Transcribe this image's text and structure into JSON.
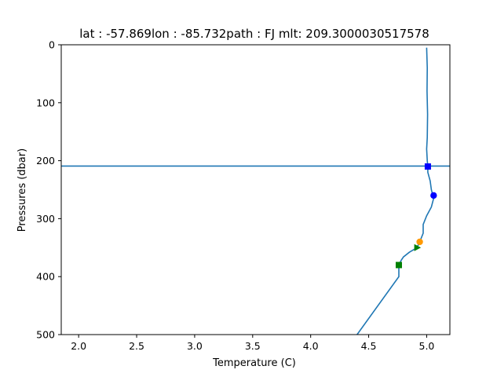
{
  "chart_data": {
    "type": "line",
    "title": "lat : -57.869lon : -85.732path :  FJ  mlt: 209.3000030517578",
    "xlabel": "Temperature (C)",
    "ylabel": "Pressures (dbar)",
    "xlim": [
      1.85,
      5.2
    ],
    "ylim": [
      500,
      0
    ],
    "y_inverted": true,
    "grid": false,
    "x_ticks": [
      2.0,
      2.5,
      3.0,
      3.5,
      4.0,
      4.5,
      5.0
    ],
    "x_tick_labels": [
      "2.0",
      "2.5",
      "3.0",
      "3.5",
      "4.0",
      "4.5",
      "5.0"
    ],
    "y_ticks": [
      0,
      100,
      200,
      300,
      400,
      500
    ],
    "y_tick_labels": [
      "0",
      "100",
      "200",
      "300",
      "400",
      "500"
    ],
    "series": [
      {
        "color": "#1f77b4",
        "x": [
          5.0,
          5.005,
          5.003,
          5.008,
          5.005,
          5.0,
          5.005,
          5.01,
          5.01,
          5.03,
          5.04,
          5.06,
          5.04,
          5.0,
          4.97,
          4.97,
          4.95,
          4.93,
          4.9,
          4.85,
          4.8,
          4.78,
          4.76,
          4.76,
          4.4
        ],
        "y": [
          5,
          40,
          80,
          120,
          160,
          180,
          200,
          210,
          220,
          235,
          250,
          265,
          280,
          295,
          310,
          325,
          335,
          345,
          352,
          358,
          366,
          372,
          380,
          400,
          500
        ]
      }
    ],
    "hline": {
      "y": 209.3000030517578,
      "color": "#1f77b4"
    },
    "markers": [
      {
        "x": 5.01,
        "y": 210,
        "shape": "square",
        "color": "#0000ff"
      },
      {
        "x": 5.06,
        "y": 260,
        "shape": "circle",
        "color": "#0000ff"
      },
      {
        "x": 4.94,
        "y": 340,
        "shape": "circle",
        "color": "#ff9900"
      },
      {
        "x": 4.92,
        "y": 350,
        "shape": "triangle-right",
        "color": "#008000"
      },
      {
        "x": 4.76,
        "y": 380,
        "shape": "square",
        "color": "#008000"
      }
    ]
  }
}
